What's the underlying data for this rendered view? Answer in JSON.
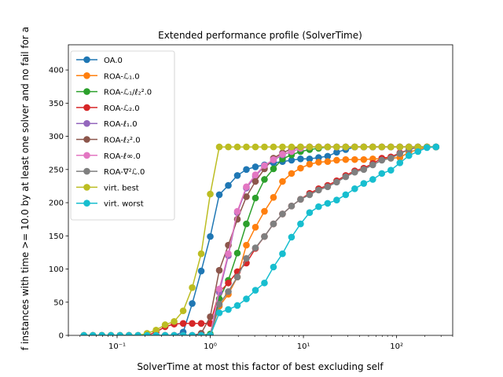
{
  "chart_data": {
    "type": "line",
    "title": "Extended performance profile (SolverTime)",
    "xlabel": "SolverTime at most this factor of best excluding self",
    "ylabel": "f instances with time >= 10.0 by at least one solver and no fail for a",
    "xscale": "log",
    "xlim": [
      0.03,
      400
    ],
    "ylim": [
      0,
      438
    ],
    "grid": false,
    "legend_position": "top-left",
    "x_ticks": [
      {
        "value": 0.1,
        "label": "10⁻¹"
      },
      {
        "value": 1,
        "label": "10⁰"
      },
      {
        "value": 10,
        "label": "10¹"
      },
      {
        "value": 100,
        "label": "10²"
      }
    ],
    "y_ticks": [
      0,
      50,
      100,
      150,
      200,
      250,
      300,
      350,
      400
    ],
    "x": [
      0.044,
      0.055,
      0.0687,
      0.0859,
      0.1074,
      0.1342,
      0.1678,
      0.2097,
      0.2621,
      0.3277,
      0.4096,
      0.512,
      0.64,
      0.8,
      1,
      1.25,
      1.5625,
      1.953,
      2.441,
      3.052,
      3.815,
      4.768,
      5.96,
      7.451,
      9.313,
      11.64,
      14.55,
      18.19,
      22.74,
      28.42,
      35.53,
      44.41,
      55.51,
      69.39,
      86.74,
      108.4,
      135.5,
      169.4,
      211.8,
      264.7
    ],
    "series": [
      {
        "name": "OA.0",
        "color": "#1f77b4",
        "values": [
          0,
          0,
          0,
          0,
          0,
          0,
          0,
          0,
          0,
          0,
          0,
          5,
          48,
          97,
          149,
          212,
          226,
          241,
          250,
          254,
          257,
          260,
          262,
          264,
          266,
          266,
          268,
          270,
          276,
          280,
          284,
          284,
          284,
          284,
          284,
          284,
          284,
          284,
          284,
          284
        ]
      },
      {
        "name": "ROA-ℒ₁.0",
        "color": "#ff7f0e",
        "values": [
          0,
          0,
          0,
          0,
          0,
          0,
          0,
          0,
          0,
          0,
          0,
          0,
          0,
          0,
          0,
          44,
          62,
          88,
          136,
          163,
          187,
          208,
          232,
          244,
          252,
          258,
          261,
          262,
          264,
          265,
          265,
          265,
          266,
          266,
          267,
          268,
          276,
          280,
          284,
          284
        ]
      },
      {
        "name": "ROA-ℒ₁/ℓ₂².0",
        "color": "#2ca02c",
        "values": [
          0,
          0,
          0,
          0,
          0,
          0,
          0,
          0,
          0,
          0,
          0,
          0,
          0,
          0,
          2,
          55,
          83,
          124,
          168,
          207,
          235,
          251,
          266,
          272,
          277,
          280,
          282,
          284,
          284,
          284,
          284,
          284,
          284,
          284,
          284,
          284,
          284,
          284,
          284,
          284
        ]
      },
      {
        "name": "ROA-ℒ₂.0",
        "color": "#d62728",
        "values": [
          0,
          0,
          0,
          0,
          0,
          0,
          0,
          0,
          5,
          13,
          17,
          18,
          18,
          18,
          18,
          65,
          79,
          96,
          109,
          131,
          149,
          168,
          183,
          195,
          205,
          214,
          221,
          226,
          233,
          241,
          248,
          252,
          259,
          267,
          269,
          275,
          280,
          284,
          284,
          284
        ]
      },
      {
        "name": "ROA-ℓ₁.0",
        "color": "#9467bd",
        "values": [
          0,
          0,
          0,
          0,
          0,
          0,
          0,
          0,
          0,
          0,
          0,
          0,
          0,
          0,
          0,
          65,
          120,
          185,
          222,
          240,
          255,
          264,
          272,
          277,
          282,
          284,
          284,
          284,
          284,
          284,
          284,
          284,
          284,
          284,
          284,
          284,
          284,
          284,
          284,
          284
        ]
      },
      {
        "name": "ROA-ℓ₂².0",
        "color": "#8c564b",
        "values": [
          0,
          0,
          0,
          0,
          0,
          0,
          0,
          0,
          0,
          0,
          0,
          0,
          0,
          3,
          28,
          98,
          136,
          175,
          209,
          232,
          251,
          267,
          275,
          281,
          284,
          284,
          284,
          284,
          284,
          284,
          284,
          284,
          284,
          284,
          284,
          284,
          284,
          284,
          284,
          284
        ]
      },
      {
        "name": "ROA-ℓ∞.0",
        "color": "#e377c2",
        "values": [
          0,
          0,
          0,
          0,
          0,
          0,
          0,
          0,
          0,
          0,
          0,
          0,
          0,
          0,
          0,
          70,
          123,
          187,
          224,
          242,
          256,
          265,
          273,
          277,
          282,
          284,
          284,
          284,
          284,
          284,
          284,
          284,
          284,
          284,
          284,
          284,
          284,
          284,
          284,
          284
        ]
      },
      {
        "name": "ROA-∇²ℒ.0",
        "color": "#7f7f7f",
        "values": [
          0,
          0,
          0,
          0,
          0,
          0,
          0,
          0,
          0,
          0,
          0,
          0,
          0,
          0,
          0,
          47,
          66,
          88,
          116,
          132,
          149,
          168,
          183,
          195,
          205,
          212,
          219,
          224,
          231,
          239,
          246,
          250,
          257,
          264,
          267,
          274,
          280,
          284,
          284,
          284
        ]
      },
      {
        "name": "virt. best",
        "color": "#bcbd22",
        "values": [
          0,
          0,
          0,
          0,
          0,
          0,
          0,
          3,
          8,
          16,
          21,
          37,
          72,
          123,
          213,
          284,
          284,
          284,
          284,
          284,
          284,
          284,
          284,
          284,
          284,
          284,
          284,
          284,
          284,
          284,
          284,
          284,
          284,
          284,
          284,
          284,
          284,
          284,
          284,
          284
        ]
      },
      {
        "name": "virt. worst",
        "color": "#17becf",
        "values": [
          0,
          0,
          0,
          0,
          0,
          0,
          0,
          0,
          0,
          0,
          0,
          0,
          0,
          0,
          0,
          34,
          39,
          45,
          55,
          68,
          79,
          103,
          123,
          148,
          168,
          185,
          194,
          199,
          204,
          212,
          221,
          229,
          235,
          244,
          249,
          260,
          271,
          277,
          283,
          284
        ]
      }
    ]
  }
}
